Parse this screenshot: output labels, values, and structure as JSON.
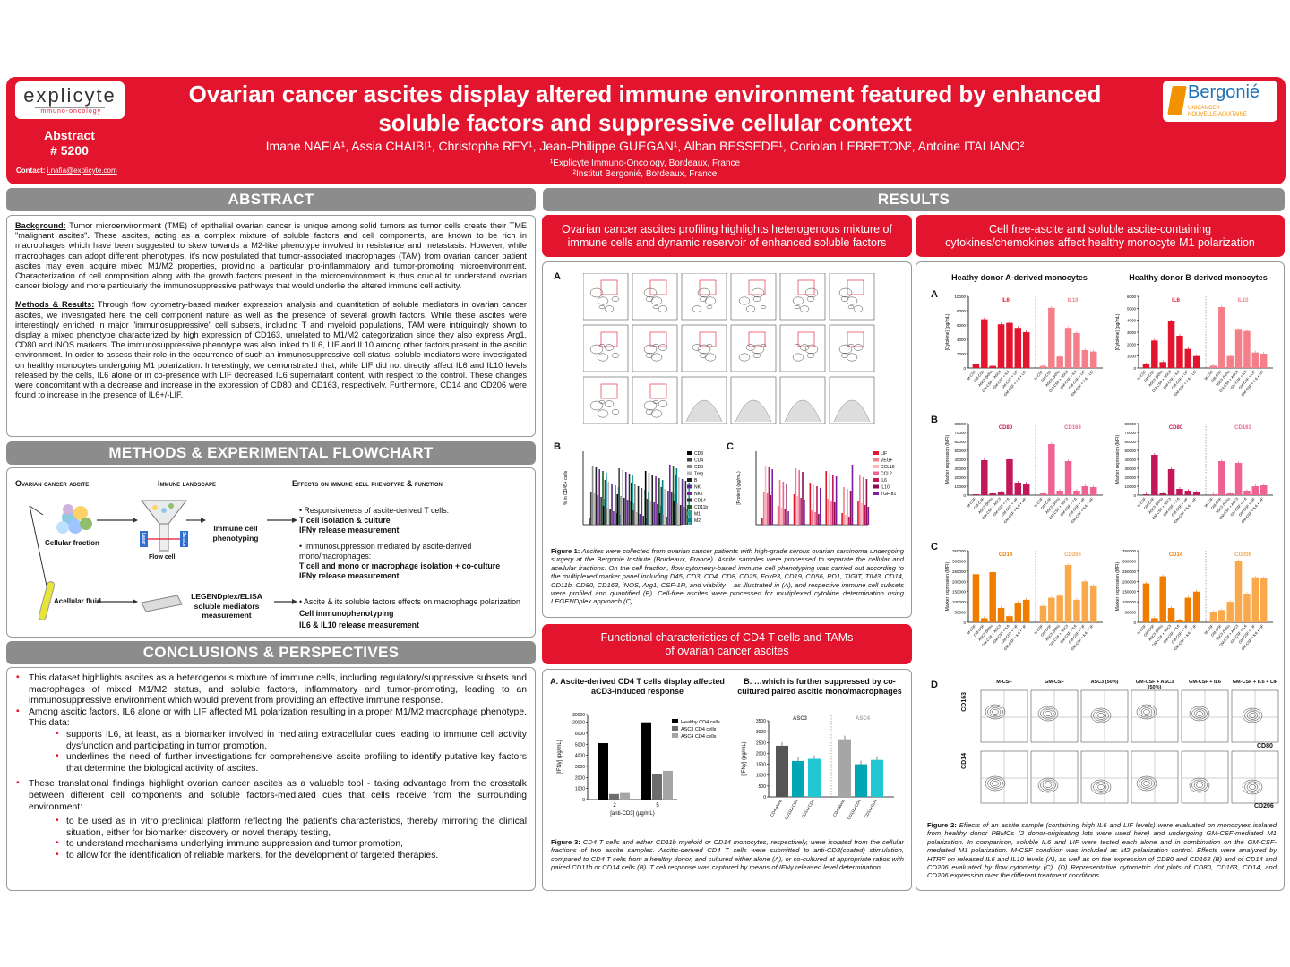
{
  "header": {
    "logo_left": "explicyte",
    "logo_left_sub": "immuno-oncology",
    "abstract_label": "Abstract",
    "abstract_number": "# 5200",
    "contact_label": "Contact:",
    "contact_email": "i.nafia@explicyte.com",
    "title_line1": "Ovarian cancer ascites display altered immune environment featured by enhanced",
    "title_line2": "soluble factors and suppressive cellular context",
    "authors": "Imane NAFIA¹, Assia CHAIBI¹, Christophe REY¹, Jean-Philippe GUEGAN¹, Alban BESSEDE¹, Coriolan LEBRETON², Antoine ITALIANO²",
    "affil1": "¹Explicyte Immuno-Oncology, Bordeaux, France",
    "affil2": "²Institut Bergonié, Bordeaux, France",
    "logo_right": "Bergonié",
    "logo_right_sub1": "UNICANCER",
    "logo_right_sub2": "NOUVELLE-AQUITAINE"
  },
  "abstract": {
    "heading": "ABSTRACT",
    "bg_label": "Background:",
    "bg_text": " Tumor microenvironment (TME) of epithelial ovarian cancer is unique among solid tumors as tumor cells create their TME \"malignant ascites\". These ascites, acting as a complex mixture of soluble factors and cell components, are known to be rich in macrophages which have been suggested to skew towards a M2-like phenotype involved in resistance and metastasis. However, while macrophages can adopt different phenotypes, it's now postulated that tumor-associated macrophages (TAM) from ovarian cancer patient ascites may even acquire mixed M1/M2 properties, providing a particular pro-inflammatory and tumor-promoting microenvironment. Characterization of cell composition along with the growth factors present in the microenvironment is thus crucial to understand ovarian cancer biology and more particularly the immunosuppressive pathways that would underlie the altered immune cell activity.",
    "mr_label": "Methods & Results:",
    "mr_text": " Through flow cytometry-based marker expression analysis and quantitation of soluble mediators in ovarian cancer ascites, we investigated here the cell component nature as well as the presence of several growth factors. While these ascites were interestingly enriched in major \"immunosuppressive\" cell subsets, including T and myeloid populations, TAM were intriguingly shown to display a mixed phenotype characterized by high expression of CD163, unrelated to M1/M2 categorization since they also express Arg1, CD80 and iNOS markers. The immunosuppressive phenotype was also linked to IL6, LIF and IL10 among other factors present in the ascitic environment. In order to assess their role in the occurrence of such an immunosuppressive cell status, soluble mediators were investigated on healthy monocytes undergoing M1 polarization. Interestingly, we demonstrated that, while LIF did not directly affect IL6 and IL10 levels released by the cells, IL6 alone or in co-presence with LIF decreased IL6 supernatant content, with respect to the control. These changes were concomitant with a decrease and increase in the expression of CD80 and CD163, respectively. Furthermore, CD14 and CD206 were found to increase in the presence of IL6+/-LIF."
  },
  "methods": {
    "heading": "METHODS & EXPERIMENTAL FLOWCHART",
    "col1": "Ovarian cancer ascite",
    "col2": "Immune landscape",
    "col3": "Effects on immune cell phenotype & function",
    "cellular_fraction": "Cellular fraction",
    "flow_cell": "Flow cell",
    "laser": "Laser",
    "sensor": "Sensor",
    "immune_phenotyping": "Immune cell phenotyping",
    "acellular_fluid": "Acellular fluid",
    "legendplex": "LEGENDplex/ELISA soluble mediators measurement",
    "e1_intro": "• Responsiveness of ascite-derived T cells:",
    "e1_b1": "T cell isolation & culture",
    "e1_b2": "IFNγ release measurement",
    "e2_intro": "• Immunosuppression mediated by ascite-derived mono/macrophages:",
    "e2_b1": "T cell and mono or macrophage isolation + co-culture",
    "e2_b2": "IFNγ release measurement",
    "e3_intro": "• Ascite & its soluble factors effects on macrophage polarization",
    "e3_b1": "Cell immunophenotyping",
    "e3_b2": "IL6 & IL10 release measurement"
  },
  "conclusions": {
    "heading": "CONCLUSIONS & PERSPECTIVES",
    "p1": "This dataset highlights ascites as a heterogenous mixture of immune cells, including regulatory/suppressive subsets and macrophages of mixed M1/M2 status, and soluble factors, inflammatory and tumor-promoting, leading to an immunosuppressive environment which would prevent from providing an effective immune response.",
    "p2": "Among ascitic factors, IL6 alone or with LIF affected M1 polarization resulting in a proper M1/M2 macrophage phenotype. This data:",
    "p2_s1": "supports IL6, at least, as a biomarker involved in mediating extracellular cues leading to immune cell activity dysfunction and participating in tumor promotion,",
    "p2_s2": "underlines the need of further investigations for comprehensive ascite profiling to identify putative key factors that determine the biological activity of ascites.",
    "p3": "These translational findings highlight ovarian cancer ascites as a valuable tool - taking advantage from the crosstalk between different cell components and soluble factors-mediated cues that cells receive from the surrounding environment:",
    "p3_s1": "to be used as in vitro preclinical platform reflecting the patient's characteristics, thereby mirroring the clinical situation, either for biomarker discovery or novel therapy testing,",
    "p3_s2": "to understand mechanisms underlying immune suppression and tumor promotion,",
    "p3_s3": "to allow for the identification of reliable markers, for the development of targeted therapies."
  },
  "results": {
    "heading": "RESULTS",
    "box1": "Ovarian cancer ascites profiling highlights heterogenous mixture of immune cells and dynamic reservoir of enhanced soluble factors",
    "box2": "Cell free-ascite and soluble ascite-containing cytokines/chemokines affect healthy monocyte M1 polarization",
    "box3": "Functional characteristics of CD4 T cells and TAMs of ovarian cancer ascites",
    "panel_a": "A",
    "panel_b": "B",
    "panel_c": "C",
    "panel_d": "D",
    "fig1_label": "Figure 1:",
    "fig1_text": " Ascites were collected from ovarian cancer patients with high-grade serous ovarian carcinoma undergoing surgery at the Bergonié Institute (Bordeaux, France). Ascite samples were processed to separate the cellular and acellular fractions. On the cell fraction, flow cytometry-based immune cell phenotyping was carried out according to the multiplexed marker panel including D45, CD3, CD4, CD8, CD25, FoxP3, CD19, CD56, PD1, TIGIT, TIM3, CD14, CD11b, CD80, CD163, iNOS, Arg1, CSF-1R, and viability – as illustrated in (A), and respective immune cell subsets were profiled and quantified (B). Cell-free ascites were processed for multiplexed cytokine determination using LEGENDplex approach (C).",
    "fig3_label": "Figure 3:",
    "fig3_text": " CD4 T cells and either CD11b myeloid or CD14 monocytes, respectively, were isolated from the cellular fractions of two ascite samples. Ascitic-derived CD4 T cells were submitted to anti-CD3(coated) stimulation, compared to CD4 T cells from a healthy donor, and cultured either alone (A), or co-cultured at appropriate ratios with paired CD11b or CD14 cells (B). T cell response was captured by means of IFNγ released level determination.",
    "fig2_label": "Figure 2:",
    "fig2_text": " Effects of an ascite sample (containing high IL6 and LIF levels) were evaluated on monocytes isolated from healthy donor PBMCs (2 donor-originating lots were used here) and undergoing GM-CSF-mediated M1 polarization. In comparison, soluble IL6 and LIF were tested each alone and in combination on the GM-CSF-mediated M1 polarization. M-CSF condition was included as M2 polarization control. Effects were analyzed by HTRF on released IL6 and IL10 levels (A), as well as on the expression of CD80 and CD163 (B) and of CD14 and CD206 evaluated by flow cytometry (C). (D) Representative cytometric dot plots of CD80, CD163, CD14, and CD206 expression over the different treatment conditions.",
    "fig3a_title": "A. Ascite-derived CD4 T cells display affected aCD3-induced response",
    "fig3b_title": "B. …which is further suppressed by co-cultured paired ascitic mono/macrophages",
    "donorA": "Heathy donor A-derived monocytes",
    "donorB": "Healthy donor B-derived monocytes",
    "d_cols": [
      "M-CSF",
      "GM-CSF",
      "ASC3 (50%)",
      "GM-CSF + ASC3 (50%)",
      "GM-CSF + IL6",
      "GM-CSF + IL6 + LIF"
    ],
    "d_cd163": "CD163",
    "d_cd80": "CD80",
    "d_cd14": "CD14",
    "d_cd206": "CD206"
  },
  "chart_data": [
    {
      "type": "bar",
      "title": "IL6 / IL10 (Heathy donor A-derived monocytes)",
      "categories": [
        "M-CSF",
        "GM-CSF",
        "ASC3 (50%)",
        "GM-CSF + ASC3",
        "GM-CSF + IL6",
        "GM-CSF + LIF",
        "GM-CSF + IL6 + LIF"
      ],
      "ylabel": "[Cytokine] (pg/mL)",
      "ylim": [
        0,
        10000
      ],
      "yticks": [
        "0",
        "2000",
        "4000",
        "6000",
        "8000",
        "10000"
      ],
      "series": [
        {
          "name": "IL6",
          "color": "#e3142d",
          "values": [
            500,
            6800,
            300,
            6100,
            6300,
            5600,
            5000
          ]
        },
        {
          "name": "IL10",
          "color": "#f47f89",
          "values": [
            300,
            8400,
            1600,
            5600,
            4900,
            2500,
            2300
          ]
        }
      ]
    },
    {
      "type": "bar",
      "title": "IL6 / IL10 (Healthy donor B-derived monocytes)",
      "categories": [
        "M-CSF",
        "GM-CSF",
        "ASC3 (50%)",
        "GM-CSF + ASC3",
        "GM-CSF + IL6",
        "GM-CSF + LIF",
        "GM-CSF + IL6 + LIF"
      ],
      "ylabel": "[Cytokine] (pg/mL)",
      "ylim": [
        0,
        6000
      ],
      "yticks": [
        "0",
        "1000",
        "2000",
        "3000",
        "4000",
        "5000",
        "6000"
      ],
      "series": [
        {
          "name": "IL6",
          "color": "#e3142d",
          "values": [
            300,
            2300,
            500,
            3900,
            2700,
            1600,
            1000
          ]
        },
        {
          "name": "IL10",
          "color": "#f47f89",
          "values": [
            200,
            5100,
            1000,
            3200,
            3100,
            1300,
            1200
          ]
        }
      ]
    },
    {
      "type": "bar",
      "title": "CD80 / CD163 (Heathy donor A-derived monocytes)",
      "categories": [
        "M-CSF",
        "GM-CSF",
        "ASC3 (50%)",
        "GM-CSF + ASC3",
        "GM-CSF + IL6",
        "GM-CSF + LIF",
        "GM-CSF + IL6 + LIF"
      ],
      "ylabel": "Marker expression (MFI)",
      "ylim": [
        0,
        80000
      ],
      "yticks": [
        "0",
        "10000",
        "20000",
        "30000",
        "40000",
        "50000",
        "60000",
        "70000",
        "80000"
      ],
      "series": [
        {
          "name": "CD80",
          "color": "#c2185b",
          "values": [
            1000,
            39000,
            2000,
            3000,
            40000,
            14000,
            13000
          ]
        },
        {
          "name": "CD163",
          "color": "#f06292",
          "values": [
            2000,
            57000,
            5000,
            38000,
            5000,
            10000,
            9000
          ]
        }
      ]
    },
    {
      "type": "bar",
      "title": "CD80 / CD163 (Healthy donor B-derived monocytes)",
      "categories": [
        "M-CSF",
        "GM-CSF",
        "ASC3 (50%)",
        "GM-CSF + ASC3",
        "GM-CSF + IL6",
        "GM-CSF + LIF",
        "GM-CSF + IL6 + LIF"
      ],
      "ylabel": "Marker expression (MFI)",
      "ylim": [
        0,
        80000
      ],
      "yticks": [
        "0",
        "10000",
        "20000",
        "30000",
        "40000",
        "50000",
        "60000",
        "70000",
        "80000"
      ],
      "series": [
        {
          "name": "CD80",
          "color": "#c2185b",
          "values": [
            1000,
            45000,
            2000,
            29000,
            7000,
            5000,
            3000
          ]
        },
        {
          "name": "CD163",
          "color": "#f06292",
          "values": [
            1000,
            38000,
            2000,
            36000,
            5000,
            10000,
            11000
          ]
        }
      ]
    },
    {
      "type": "bar",
      "title": "CD14 / CD206 (Heathy donor A-derived monocytes)",
      "categories": [
        "M-CSF",
        "GM-CSF",
        "ASC3 (50%)",
        "GM-CSF + ASC3",
        "GM-CSF + IL6",
        "GM-CSF + LIF",
        "GM-CSF + IL6 + LIF"
      ],
      "ylabel": "Marker expression (MFI)",
      "ylim": [
        0,
        350000
      ],
      "yticks": [
        "0",
        "50000",
        "100000",
        "150000",
        "200000",
        "250000",
        "300000",
        "350000"
      ],
      "series": [
        {
          "name": "CD14",
          "color": "#f07d00",
          "values": [
            235000,
            20000,
            245000,
            70000,
            30000,
            95000,
            110000
          ]
        },
        {
          "name": "CD206",
          "color": "#f9a94b",
          "values": [
            80000,
            120000,
            130000,
            280000,
            110000,
            200000,
            180000
          ]
        }
      ]
    },
    {
      "type": "bar",
      "title": "CD14 / CD206 (Healthy donor B-derived monocytes)",
      "categories": [
        "M-CSF",
        "GM-CSF",
        "ASC3 (50%)",
        "GM-CSF + ASC3",
        "GM-CSF + IL6",
        "GM-CSF + LIF",
        "GM-CSF + IL6 + LIF"
      ],
      "ylabel": "Marker expression (MFI)",
      "ylim": [
        0,
        350000
      ],
      "yticks": [
        "0",
        "50000",
        "100000",
        "150000",
        "200000",
        "250000",
        "300000",
        "350000"
      ],
      "series": [
        {
          "name": "CD14",
          "color": "#f07d00",
          "values": [
            190000,
            20000,
            225000,
            70000,
            10000,
            120000,
            150000
          ]
        },
        {
          "name": "CD206",
          "color": "#f9a94b",
          "values": [
            50000,
            60000,
            100000,
            300000,
            140000,
            220000,
            215000
          ]
        }
      ]
    },
    {
      "type": "bar",
      "title": "A. Ascite-derived CD4 T cells display affected aCD3-induced response",
      "categories": [
        "2",
        "5"
      ],
      "xlabel": "[anti-CD3] (µg/mL)",
      "ylabel": "[IFNγ] (pg/mL)",
      "yticks": [
        "0",
        "1000",
        "2000",
        "3000",
        "4000",
        "5000",
        "6000",
        "20000",
        "30000"
      ],
      "series": [
        {
          "name": "Healthy CD4 cells",
          "color": "#000000",
          "values": [
            5100,
            20000
          ]
        },
        {
          "name": "ASC3 CD4 cells",
          "color": "#6d6d6d",
          "values": [
            500,
            2300
          ]
        },
        {
          "name": "ASC4 CD4 cells",
          "color": "#a6a6a6",
          "values": [
            600,
            2600
          ]
        }
      ]
    },
    {
      "type": "bar",
      "title": "B. …which is further suppressed by co-cultured paired ascitic mono/macrophages",
      "categories": [
        "CD4 alone",
        "CD11b+CD4",
        "CD14+CD4"
      ],
      "ylabel": "[IFNγ] (pg/mL)",
      "ylim": [
        0,
        3500
      ],
      "yticks": [
        "0",
        "500",
        "1000",
        "1500",
        "2000",
        "2500",
        "3000",
        "3500"
      ],
      "series": [
        {
          "name": "ASC3",
          "color": "#555555",
          "values": [
            2350,
            1650,
            1750
          ]
        },
        {
          "name": "ASC4",
          "color": "#a6a6a6",
          "values": [
            2650,
            1500,
            1700
          ]
        }
      ]
    },
    {
      "type": "bar",
      "title": "B",
      "ylabel": "% in CD45+ cells",
      "legend": [
        "CD3",
        "CD4",
        "CD8",
        "Treg",
        "B",
        "NK",
        "NKT",
        "CD14",
        "CD11b",
        "M1",
        "M2"
      ],
      "colors": [
        "#000000",
        "#444444",
        "#888888",
        "#bbbbbb",
        "#222222",
        "#5b2c8f",
        "#7b1fa2",
        "#333333",
        "#1b5e20",
        "#26a69a",
        "#00838f"
      ]
    },
    {
      "type": "bar",
      "title": "C",
      "ylabel": "[Protein] (pg/mL)",
      "legend": [
        "LIF",
        "VEGF",
        "CCL18",
        "CCL2",
        "IL6",
        "IL10",
        "TGF-b1"
      ],
      "colors": [
        "#e3142d",
        "#f47f89",
        "#f9b7bc",
        "#f06292",
        "#c2185b",
        "#880e4f",
        "#7b1fa2"
      ]
    }
  ]
}
